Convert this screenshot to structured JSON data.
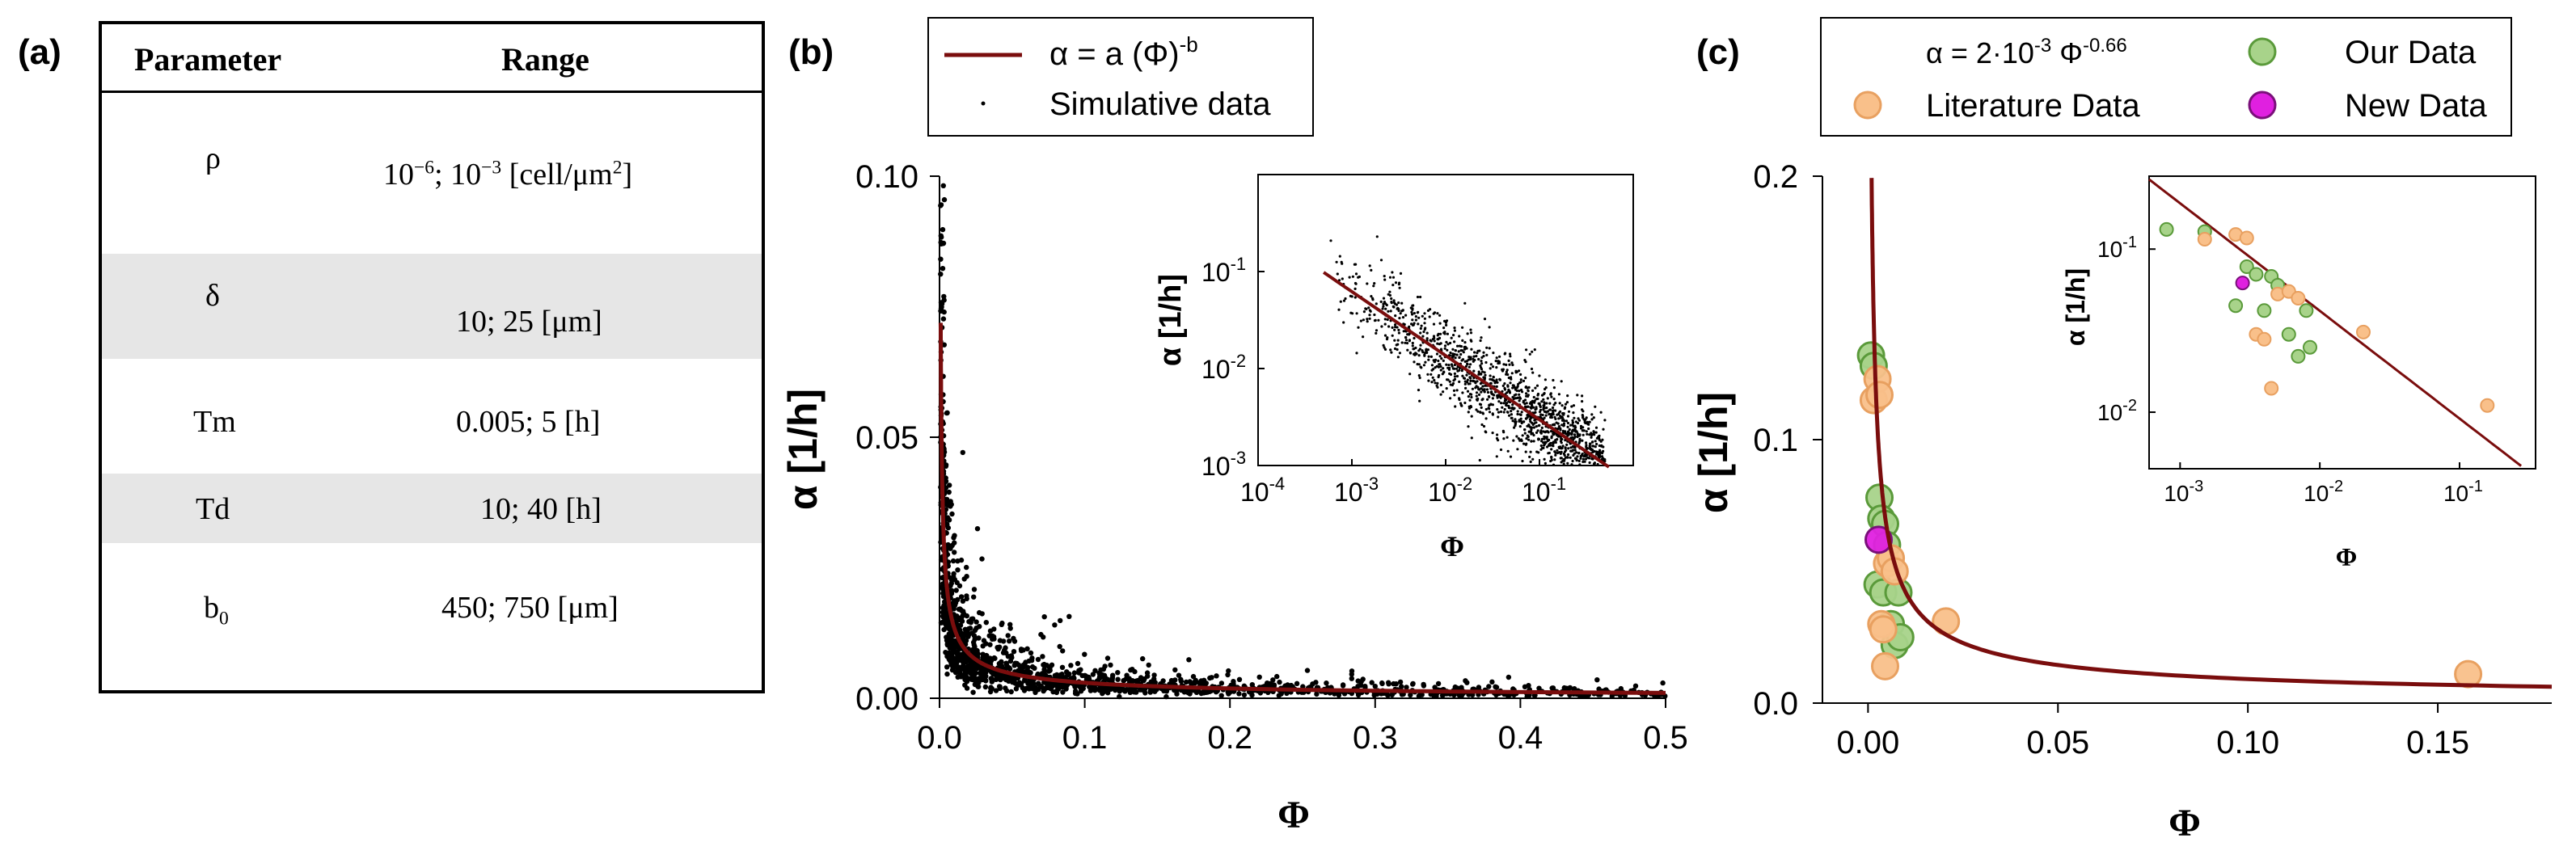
{
  "panel_labels": [
    "(a)",
    "(b)",
    "(c)"
  ],
  "table": {
    "headers": [
      "Parameter",
      "Range"
    ],
    "rows": [
      {
        "param": "ρ",
        "range_a": "10",
        "exp1": "−6",
        "range_b": "; 10",
        "exp2": "−3",
        "range_c": " [cell/μm",
        "exp3": "2",
        "range_d": "]"
      },
      {
        "param": "δ",
        "range": "10; 25 [μm]"
      },
      {
        "param": "Tm",
        "range": "0.005; 5 [h]"
      },
      {
        "param": "Td",
        "range": "10; 40 [h]"
      },
      {
        "param_base": "b",
        "param_sub": "0",
        "range": "450; 750 [μm]"
      }
    ]
  },
  "colors": {
    "fit_line": "#7a0d0d",
    "sim_points": "#000000",
    "our_fill": "#a8d38a",
    "our_edge": "#5a9a3a",
    "lit_fill": "#f9c08a",
    "lit_edge": "#e8a060",
    "new_fill": "#e020e0",
    "new_edge": "#7a107a"
  },
  "chart_data": [
    {
      "id": "b",
      "type": "scatter",
      "xlabel": "Φ",
      "ylabel": "α [1/h]",
      "xlim": [
        0,
        0.5
      ],
      "ylim": [
        0,
        0.1
      ],
      "xticks": [
        "0.0",
        "0.1",
        "0.2",
        "0.3",
        "0.4",
        "0.5"
      ],
      "xtick_values": [
        0,
        0.1,
        0.2,
        0.3,
        0.4,
        0.5
      ],
      "yticks": [
        "0.00",
        "0.05",
        "0.10"
      ],
      "ytick_values": [
        0,
        0.05,
        0.1
      ],
      "legend": {
        "fit_label": "α = a (Φ)",
        "fit_exp": "-b",
        "points_label": "Simulative data",
        "position": "top"
      },
      "fit": {
        "a": 0.00065,
        "b": 0.66
      },
      "series": [
        {
          "name": "Simulative data",
          "n_points": 1500,
          "phi_range": [
            0.0005,
            0.5
          ],
          "scatter_factor": 0.5
        }
      ],
      "inset": {
        "type": "scatter",
        "scale": "log-log",
        "xlabel": "Φ",
        "ylabel": "α [1/h]",
        "xlim": [
          0.0001,
          1
        ],
        "ylim": [
          0.001,
          1
        ],
        "xticks": [
          {
            "base": "10",
            "exp": "-4"
          },
          {
            "base": "10",
            "exp": "-3"
          },
          {
            "base": "10",
            "exp": "-2"
          },
          {
            "base": "10",
            "exp": "-1"
          }
        ],
        "xtick_values": [
          0.0001,
          0.001,
          0.01,
          0.1
        ],
        "yticks": [
          {
            "base": "10",
            "exp": "-3"
          },
          {
            "base": "10",
            "exp": "-2"
          },
          {
            "base": "10",
            "exp": "-1"
          }
        ],
        "ytick_values": [
          0.001,
          0.01,
          0.1
        ]
      }
    },
    {
      "id": "c",
      "type": "scatter",
      "xlabel": "Φ",
      "ylabel": "α [1/h]",
      "xlim": [
        -0.012,
        0.18
      ],
      "ylim": [
        0,
        0.2
      ],
      "xticks": [
        "0.00",
        "0.05",
        "0.10",
        "0.15"
      ],
      "xtick_values": [
        0,
        0.05,
        0.1,
        0.15
      ],
      "yticks": [
        "0.0",
        "0.1",
        "0.2"
      ],
      "ytick_values": [
        0,
        0.1,
        0.2
      ],
      "legend": {
        "fit_prefix": "α = 2·10",
        "fit_exp1": "-3",
        "fit_mid": " Φ",
        "fit_exp2": "-0.66",
        "our_label": "Our Data",
        "lit_label": "Literature Data",
        "new_label": "New Data",
        "position": "top"
      },
      "fit": {
        "a": 0.002,
        "b": 0.66
      },
      "series": [
        {
          "name": "Our Data",
          "x": [
            0.0008,
            0.0015,
            0.0025,
            0.003,
            0.0035,
            0.004,
            0.0045,
            0.005,
            0.006,
            0.007,
            0.008,
            0.0085
          ],
          "y": [
            0.132,
            0.128,
            0.045,
            0.078,
            0.07,
            0.042,
            0.068,
            0.06,
            0.03,
            0.022,
            0.042,
            0.025
          ]
        },
        {
          "name": "Literature Data",
          "x": [
            0.0015,
            0.0025,
            0.003,
            0.0035,
            0.004,
            0.0045,
            0.005,
            0.006,
            0.007,
            0.0205,
            0.158
          ],
          "y": [
            0.115,
            0.123,
            0.117,
            0.03,
            0.028,
            0.014,
            0.053,
            0.055,
            0.05,
            0.031,
            0.011
          ]
        },
        {
          "name": "New Data",
          "x": [
            0.0028
          ],
          "y": [
            0.062
          ]
        }
      ],
      "inset": {
        "type": "scatter",
        "scale": "log-log",
        "xlabel": "Φ",
        "ylabel": "α [1/h]",
        "xlim": [
          0.0006,
          0.35
        ],
        "ylim": [
          0.0045,
          0.28
        ],
        "xticks": [
          {
            "base": "10",
            "exp": "-3"
          },
          {
            "base": "10",
            "exp": "-2"
          },
          {
            "base": "10",
            "exp": "-1"
          }
        ],
        "xtick_values": [
          0.001,
          0.01,
          0.1
        ],
        "yticks": [
          {
            "base": "10",
            "exp": "-2"
          },
          {
            "base": "10",
            "exp": "-1"
          }
        ],
        "ytick_values": [
          0.01,
          0.1
        ]
      }
    }
  ]
}
